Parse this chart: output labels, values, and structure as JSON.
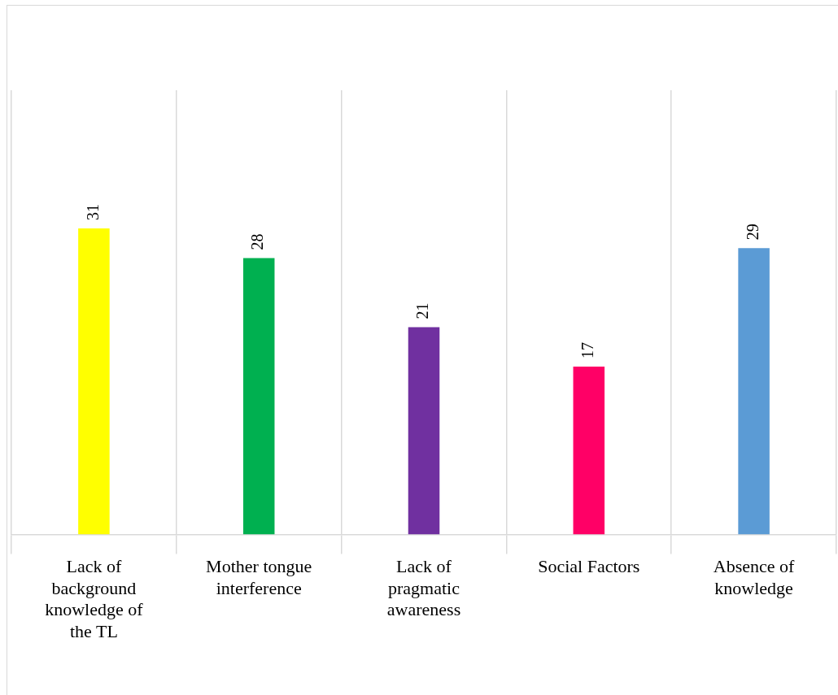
{
  "chart_data": {
    "type": "bar",
    "categories": [
      "Lack of background knowledge of the TL",
      "Mother tongue interference",
      "Lack of pragmatic awareness",
      "Social Factors",
      "Absence of knowledge"
    ],
    "values": [
      31,
      28,
      21,
      17,
      29
    ],
    "colors": [
      "#ffff00",
      "#00b050",
      "#7030a0",
      "#ff0066",
      "#5b9bd5"
    ],
    "ylim": [
      0,
      45
    ],
    "grid": "x",
    "data_labels": true,
    "legend": false,
    "tick_labels": "x"
  }
}
